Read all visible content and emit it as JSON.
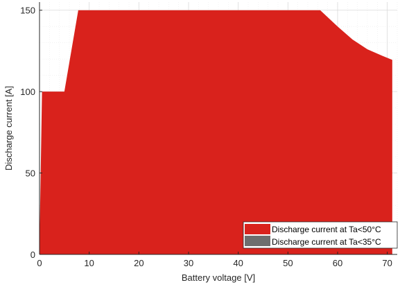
{
  "chart_data": {
    "type": "area",
    "xlabel": "Battery voltage [V]",
    "ylabel": "Discharge current [A]",
    "xlim": [
      0,
      72
    ],
    "ylim": [
      0,
      155
    ],
    "x_ticks": [
      0,
      10,
      20,
      30,
      40,
      50,
      60,
      70
    ],
    "y_ticks": [
      0,
      50,
      100,
      150
    ],
    "grid": true,
    "legend_position": "bottom-right",
    "series": [
      {
        "name": "Discharge current at Ta<50°C",
        "color": "#d9221c",
        "x": [
          0,
          0.5,
          5,
          7.8,
          56.5,
          60,
          63,
          66,
          69,
          71
        ],
        "y": [
          5,
          100,
          100,
          150,
          150,
          140,
          132,
          126,
          122,
          119.5
        ]
      },
      {
        "name": "Discharge current at Ta<35°C",
        "color": "#6e6e6e",
        "x": [],
        "y": []
      }
    ],
    "legend_labels": [
      "Discharge current at Ta<50°C",
      "Discharge current at Ta<35°C"
    ]
  }
}
